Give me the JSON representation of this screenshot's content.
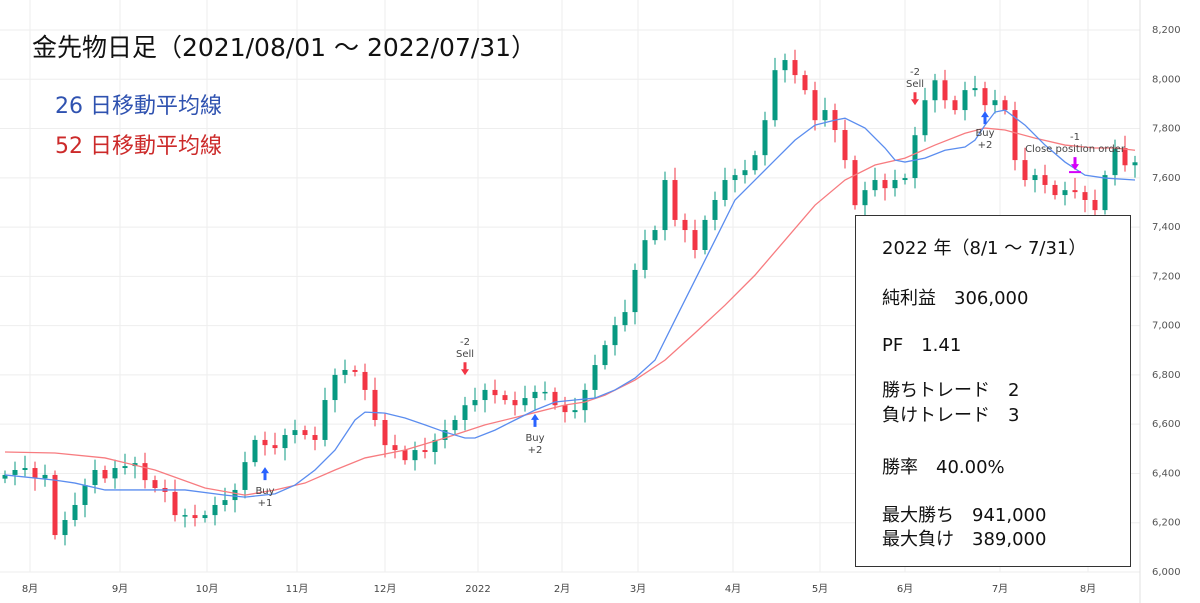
{
  "title": "金先物日足（2021/08/01 〜 2022/07/31）",
  "legend": [
    {
      "label": "26 日移動平均線",
      "color": "#2f52b0"
    },
    {
      "label": "52 日移動平均線",
      "color": "#cc2a2a"
    }
  ],
  "info_box": {
    "period": "2022 年（8/1 〜 7/31）",
    "net_profit": "純利益　306,000",
    "pf": "PF　1.41",
    "wins": "勝ちトレード　2",
    "losses": "負けトレード　3",
    "win_rate": "勝率　40.00%",
    "max_win": "最大勝ち　941,000",
    "max_loss": "最大負け　389,000"
  },
  "chart_data": {
    "type": "candlestick",
    "ylim": [
      6000,
      8200
    ],
    "yticks": [
      "6,000",
      "6,200",
      "6,400",
      "6,600",
      "6,800",
      "7,000",
      "7,200",
      "7,400",
      "7,600",
      "7,800",
      "8,000",
      "8,200"
    ],
    "ytick_values": [
      6000,
      6200,
      6400,
      6600,
      6800,
      7000,
      7200,
      7400,
      7600,
      7800,
      8000,
      8200
    ],
    "xticks": [
      {
        "label": "8月",
        "index": 2.5
      },
      {
        "label": "9月",
        "index": 11.5
      },
      {
        "label": "10月",
        "index": 20.2
      },
      {
        "label": "11月",
        "index": 29.2
      },
      {
        "label": "12月",
        "index": 38
      },
      {
        "label": "2022",
        "index": 47.3
      },
      {
        "label": "2月",
        "index": 55.7
      },
      {
        "label": "3月",
        "index": 63.3
      },
      {
        "label": "4月",
        "index": 72.8
      },
      {
        "label": "5月",
        "index": 81.5
      },
      {
        "label": "6月",
        "index": 90
      },
      {
        "label": "7月",
        "index": 99.5
      },
      {
        "label": "8月",
        "index": 108.3
      }
    ],
    "grid": true,
    "colors": {
      "up": "#089981",
      "down": "#f23645",
      "ma26": "#5b8def",
      "ma52": "#f77c80",
      "buy": "#2962ff",
      "sell": "#f23645",
      "close": "#d500f9"
    },
    "close": [
      6394,
      6414,
      6422,
      6380,
      6394,
      6150,
      6211,
      6272,
      6353,
      6414,
      6380,
      6422,
      6430,
      6442,
      6373,
      6341,
      6325,
      6231,
      6231,
      6219,
      6231,
      6272,
      6292,
      6333,
      6446,
      6536,
      6515,
      6503,
      6556,
      6576,
      6556,
      6536,
      6698,
      6800,
      6820,
      6812,
      6739,
      6617,
      6515,
      6495,
      6454,
      6495,
      6487,
      6536,
      6576,
      6617,
      6677,
      6698,
      6739,
      6718,
      6698,
      6677,
      6706,
      6731,
      6731,
      6677,
      6649,
      6657,
      6739,
      6840,
      6921,
      7002,
      7055,
      7226,
      7347,
      7388,
      7591,
      7429,
      7388,
      7307,
      7429,
      7510,
      7591,
      7611,
      7631,
      7692,
      7834,
      8037,
      8078,
      8017,
      7956,
      7834,
      7875,
      7794,
      7672,
      7489,
      7550,
      7591,
      7558,
      7591,
      7599,
      7773,
      7915,
      7996,
      7915,
      7875,
      7956,
      7964,
      7895,
      7915,
      7875,
      7672,
      7591,
      7611,
      7571,
      7530,
      7550,
      7542,
      7510,
      7469,
      7611,
      7721,
      7651,
      7663
    ],
    "ma26": [
      [
        0,
        6394
      ],
      [
        5,
        6373
      ],
      [
        7,
        6361
      ],
      [
        10,
        6333
      ],
      [
        14,
        6333
      ],
      [
        18,
        6333
      ],
      [
        22,
        6312
      ],
      [
        24,
        6304
      ],
      [
        27,
        6317
      ],
      [
        29,
        6353
      ],
      [
        31,
        6414
      ],
      [
        33,
        6495
      ],
      [
        35,
        6617
      ],
      [
        36,
        6649
      ],
      [
        38,
        6645
      ],
      [
        40,
        6625
      ],
      [
        42,
        6597
      ],
      [
        44,
        6568
      ],
      [
        46,
        6544
      ],
      [
        47,
        6544
      ],
      [
        49,
        6576
      ],
      [
        51,
        6617
      ],
      [
        53,
        6657
      ],
      [
        55,
        6690
      ],
      [
        57,
        6698
      ],
      [
        59,
        6706
      ],
      [
        61,
        6739
      ],
      [
        63,
        6787
      ],
      [
        65,
        6860
      ],
      [
        67,
        7023
      ],
      [
        69,
        7185
      ],
      [
        71,
        7347
      ],
      [
        73,
        7510
      ],
      [
        75,
        7591
      ],
      [
        77,
        7672
      ],
      [
        79,
        7753
      ],
      [
        81,
        7814
      ],
      [
        83,
        7834
      ],
      [
        84,
        7842
      ],
      [
        86,
        7802
      ],
      [
        88,
        7721
      ],
      [
        89,
        7672
      ],
      [
        90,
        7664
      ],
      [
        92,
        7680
      ],
      [
        94,
        7712
      ],
      [
        96,
        7725
      ],
      [
        97,
        7753
      ],
      [
        98,
        7814
      ],
      [
        99,
        7867
      ],
      [
        100,
        7875
      ],
      [
        102,
        7814
      ],
      [
        104,
        7733
      ],
      [
        106,
        7664
      ],
      [
        108,
        7611
      ],
      [
        110,
        7599
      ],
      [
        113,
        7591
      ]
    ],
    "ma52": [
      [
        0,
        6487
      ],
      [
        5,
        6483
      ],
      [
        10,
        6463
      ],
      [
        15,
        6414
      ],
      [
        20,
        6341
      ],
      [
        24,
        6312
      ],
      [
        27,
        6333
      ],
      [
        30,
        6361
      ],
      [
        33,
        6414
      ],
      [
        36,
        6463
      ],
      [
        40,
        6495
      ],
      [
        44,
        6544
      ],
      [
        48,
        6597
      ],
      [
        52,
        6637
      ],
      [
        56,
        6678
      ],
      [
        58,
        6690
      ],
      [
        60,
        6718
      ],
      [
        63,
        6779
      ],
      [
        66,
        6860
      ],
      [
        69,
        6970
      ],
      [
        72,
        7083
      ],
      [
        75,
        7205
      ],
      [
        78,
        7347
      ],
      [
        81,
        7489
      ],
      [
        84,
        7591
      ],
      [
        87,
        7652
      ],
      [
        90,
        7680
      ],
      [
        93,
        7733
      ],
      [
        96,
        7781
      ],
      [
        98,
        7802
      ],
      [
        100,
        7794
      ],
      [
        103,
        7761
      ],
      [
        106,
        7733
      ],
      [
        109,
        7721
      ],
      [
        111,
        7721
      ],
      [
        113,
        7712
      ]
    ],
    "markers": [
      {
        "index": 26,
        "type": "buy",
        "label1": "Buy",
        "label2": "+1"
      },
      {
        "index": 46,
        "type": "sell",
        "label1": "-2",
        "label2": "Sell"
      },
      {
        "index": 53,
        "type": "buy",
        "label1": "Buy",
        "label2": "+2"
      },
      {
        "index": 91,
        "type": "sell",
        "label1": "-2",
        "label2": "Sell"
      },
      {
        "index": 98,
        "type": "buy2",
        "label1": "Buy",
        "label2": "+2"
      },
      {
        "index": 107,
        "type": "close",
        "label1": "-1",
        "label2": "Close position order"
      }
    ]
  }
}
